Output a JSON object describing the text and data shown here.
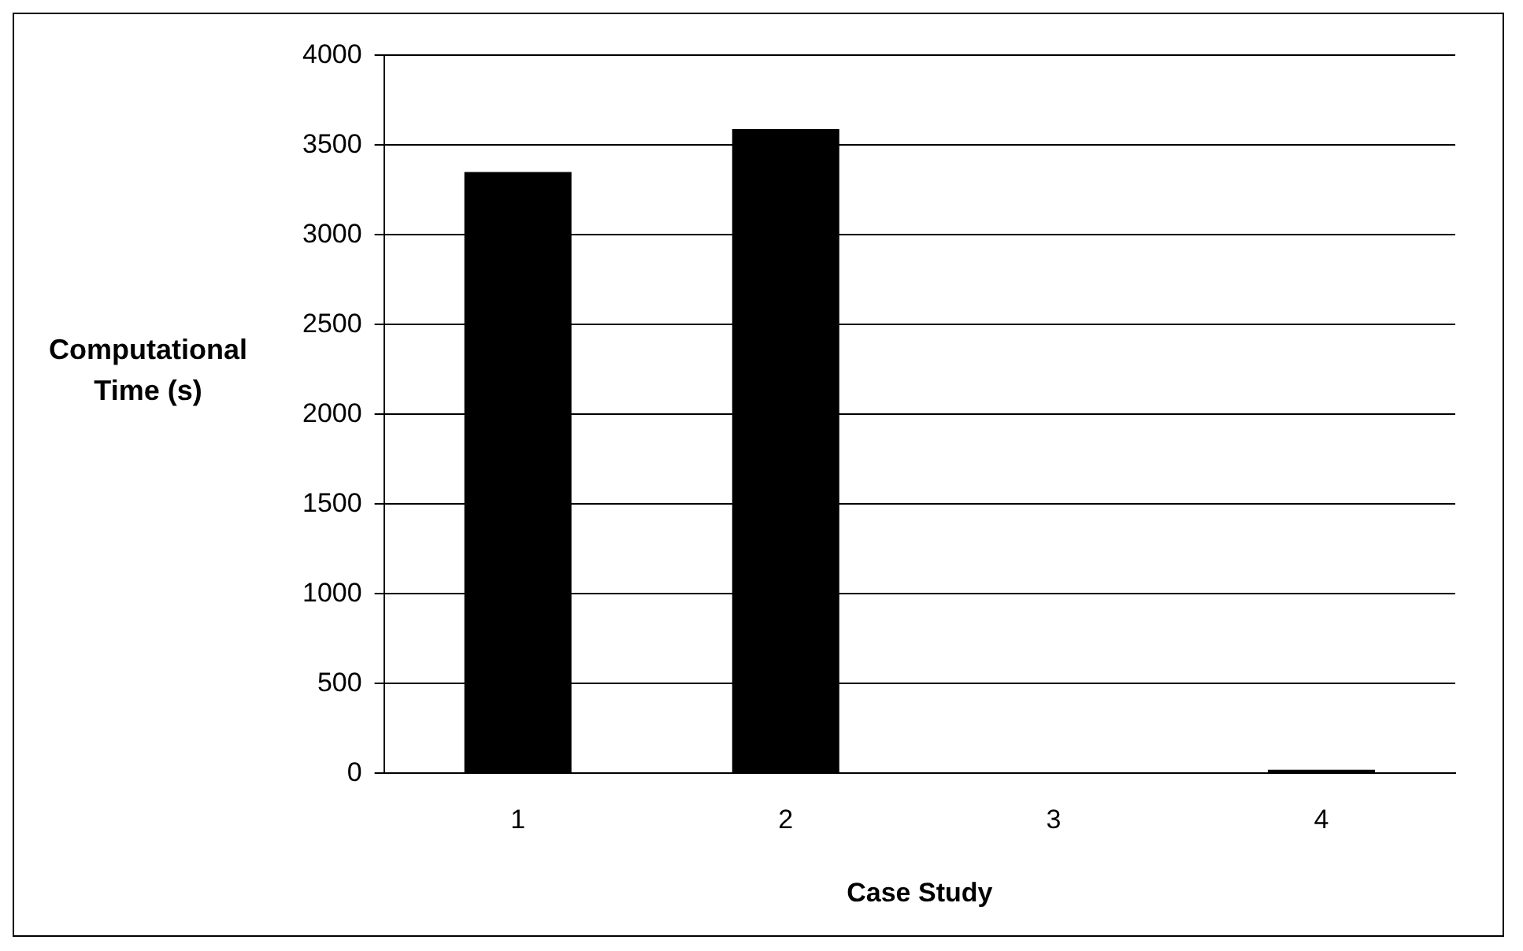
{
  "chart_data": {
    "type": "bar",
    "xlabel": "Case Study",
    "ylabel": "Computational Time (s)",
    "categories": [
      "1",
      "2",
      "3",
      "4"
    ],
    "values": [
      3350,
      3590,
      null,
      20
    ],
    "color": "#000000",
    "ylim": [
      0,
      4000
    ],
    "yticks": [
      0,
      500,
      1000,
      1500,
      2000,
      2500,
      3000,
      3500,
      4000
    ],
    "grid": "y",
    "legend": false
  }
}
